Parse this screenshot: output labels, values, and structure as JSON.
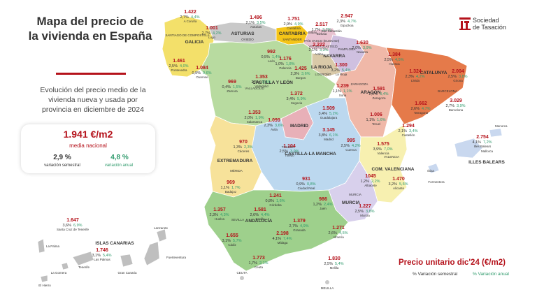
{
  "header": {
    "title_line1": "Mapa del precio de",
    "title_line2": "la vivienda en España",
    "subtitle_line1": "Evolución del precio medio de la",
    "subtitle_line2": "vivienda nueva y usada por",
    "subtitle_line3": "provincia en diciembre de 2024"
  },
  "brand": {
    "line1": "Sociedad",
    "line2": "de Tasación",
    "color": "#b5121b"
  },
  "national": {
    "price": "1.941 €/m2",
    "label": "media nacional",
    "semestral_value": "2,9 %",
    "semestral_label": "variación semestral",
    "anual_value": "4,8 %",
    "anual_label": "variación anual"
  },
  "legend": {
    "title": "Precio unitario dic'24 (€/m2)",
    "semestral": "% Variación semestral",
    "anual": "% Variación anual"
  },
  "colors": {
    "accent": "#b5121b",
    "anual": "#2e9a6b",
    "semestral": "#333333"
  },
  "regions": [
    {
      "name": "GALICIA",
      "color": "#f3e06a"
    },
    {
      "name": "ASTURIAS",
      "color": "#c9c9c9"
    },
    {
      "name": "CANTABRIA",
      "color": "#f5c518"
    },
    {
      "name": "PAÍS VASCO (EUSKADI)",
      "color": "#e8c2d0"
    },
    {
      "name": "NAVARRA",
      "color": "#cfc0e0"
    },
    {
      "name": "LA RIOJA",
      "color": "#d9c9a8"
    },
    {
      "name": "ARAGÓN",
      "color": "#f0b8a8"
    },
    {
      "name": "CATALUNYA",
      "color": "#e57a4a"
    },
    {
      "name": "CASTILLA Y LEÓN",
      "color": "#b8dba0"
    },
    {
      "name": "MADRID",
      "color": "#e8b0b8"
    },
    {
      "name": "CASTILLA-LA MANCHA",
      "color": "#bcd8ef"
    },
    {
      "name": "EXTREMADURA",
      "color": "#f7e29a"
    },
    {
      "name": "COM. VALENCIANA",
      "color": "#f7f0b0"
    },
    {
      "name": "MURCIA",
      "color": "#d8d0ec"
    },
    {
      "name": "ANDALUCÍA",
      "color": "#9ed08c"
    },
    {
      "name": "ILLES BALEARS",
      "color": "#c9d8ef"
    },
    {
      "name": "ISLAS CANARIAS",
      "color": "#bfbfbf"
    }
  ],
  "provinces": [
    {
      "name": "A Coruña",
      "price": "1.422",
      "vs": "2,7%",
      "va": "4,4%"
    },
    {
      "name": "Lugo",
      "price": "1.001",
      "vs": "2,7%",
      "va": "4,2%"
    },
    {
      "name": "Pontevedra",
      "price": "1.461",
      "vs": "2,5%",
      "va": "4,0%"
    },
    {
      "name": "Ourense",
      "price": "1.084",
      "vs": "0,9%",
      "va": "0,6%"
    },
    {
      "name": "Asturias",
      "price": "1.496",
      "vs": "2,1%",
      "va": "3,5%"
    },
    {
      "name": "Cantabria",
      "price": "1.751",
      "vs": "2,9%",
      "va": "4,9%"
    },
    {
      "name": "Bizkaia",
      "price": "2.517",
      "vs": "1,7%",
      "va": "3,2%"
    },
    {
      "name": "Gipuzkoa",
      "price": "2.947",
      "vs": "2,3%",
      "va": "4,7%"
    },
    {
      "name": "Araba",
      "price": "2.222",
      "vs": "2,1%",
      "va": "3,3%"
    },
    {
      "name": "Navarra",
      "price": "1.630",
      "vs": "2,0%",
      "va": "3,9%"
    },
    {
      "name": "La Rioja",
      "price": "1.300",
      "vs": "3,2%",
      "va": "5,4%"
    },
    {
      "name": "Huesca",
      "price": "1.384",
      "vs": "2,5%",
      "va": "4,5%"
    },
    {
      "name": "Zaragoza",
      "price": "1.591",
      "vs": "2,0%",
      "va": "3,4%"
    },
    {
      "name": "Teruel",
      "price": "1.006",
      "vs": "1,1%",
      "va": "1,6%"
    },
    {
      "name": "Lleida",
      "price": "1.324",
      "vs": "2,3%",
      "va": "4,2%"
    },
    {
      "name": "Girona",
      "price": "2.004",
      "vs": "2,5%",
      "va": "3,8%"
    },
    {
      "name": "Barcelona",
      "price": "3.029",
      "vs": "2,7%",
      "va": "3,9%"
    },
    {
      "name": "Tarragona",
      "price": "1.662",
      "vs": "2,6%",
      "va": "4,7%"
    },
    {
      "name": "León",
      "price": "992",
      "vs": "0,5%",
      "va": "1,4%"
    },
    {
      "name": "Palencia",
      "price": "1.176",
      "vs": "1,0%",
      "va": "1,8%"
    },
    {
      "name": "Burgos",
      "price": "1.425",
      "vs": "2,3%",
      "va": "3,6%"
    },
    {
      "name": "Zamora",
      "price": "969",
      "vs": "0,4%",
      "va": "1,5%"
    },
    {
      "name": "Valladolid",
      "price": "1.353",
      "vs": "2,0%",
      "va": "3,5%"
    },
    {
      "name": "Soria",
      "price": "1.239",
      "vs": "1,1%",
      "va": "1,1%"
    },
    {
      "name": "Segovia",
      "price": "1.372",
      "vs": "3,4%",
      "va": "5,9%"
    },
    {
      "name": "Salamanca",
      "price": "1.353",
      "vs": "2,0%",
      "va": "1,9%"
    },
    {
      "name": "Ávila",
      "price": "1.099",
      "vs": "2,3%",
      "va": "3,6%"
    },
    {
      "name": "Guadalajara",
      "price": "1.509",
      "vs": "3,4%",
      "va": "5,2%"
    },
    {
      "name": "Madrid",
      "price": "3.145",
      "vs": "3,8%",
      "va": "6,1%"
    },
    {
      "name": "Cuenca",
      "price": "995",
      "vs": "2,5%",
      "va": "4,2%"
    },
    {
      "name": "Toledo",
      "price": "1.104",
      "vs": "2,5%",
      "va": "3,9%"
    },
    {
      "name": "Ciudad Real",
      "price": "931",
      "vs": "0,9%",
      "va": "0,8%"
    },
    {
      "name": "Albacete",
      "price": "1045",
      "vs": "1,2%",
      "va": "2,2%"
    },
    {
      "name": "Cáceres",
      "price": "970",
      "vs": "1,3%",
      "va": "2,3%"
    },
    {
      "name": "Badajoz",
      "price": "969",
      "vs": "1,1%",
      "va": "1,7%"
    },
    {
      "name": "Castellón",
      "price": "1.294",
      "vs": "2,1%",
      "va": "3,4%"
    },
    {
      "name": "Valencia",
      "price": "1.575",
      "vs": "3,9%",
      "va": "7,0%"
    },
    {
      "name": "Alicante",
      "price": "1.470",
      "vs": "3,2%",
      "va": "5,6%"
    },
    {
      "name": "Murcia",
      "price": "1.227",
      "vs": "2,5%",
      "va": "3,8%"
    },
    {
      "name": "Huelva",
      "price": "1.357",
      "vs": "2,3%",
      "va": "4,3%"
    },
    {
      "name": "Sevilla",
      "price": "1.581",
      "vs": "2,6%",
      "va": "4,4%"
    },
    {
      "name": "Córdoba",
      "price": "1.241",
      "vs": "0,8%",
      "va": "1,6%"
    },
    {
      "name": "Jaén",
      "price": "986",
      "vs": "1,2%",
      "va": "2,4%"
    },
    {
      "name": "Granada",
      "price": "1.379",
      "vs": "2,7%",
      "va": "4,9%"
    },
    {
      "name": "Almería",
      "price": "1.271",
      "vs": "2,6%",
      "va": "4,5%"
    },
    {
      "name": "Málaga",
      "price": "2.198",
      "vs": "4,1%",
      "va": "7,4%"
    },
    {
      "name": "Cádiz",
      "price": "1.655",
      "vs": "3,1%",
      "va": "5,7%"
    },
    {
      "name": "Illes Balears",
      "price": "2.754",
      "vs": "4,1%",
      "va": "7,2%"
    },
    {
      "name": "Santa Cruz de Tenerife",
      "price": "1.647",
      "vs": "3,6%",
      "va": "6,9%"
    },
    {
      "name": "Las Palmas",
      "price": "1.746",
      "vs": "3,1%",
      "va": "5,4%"
    },
    {
      "name": "Ceuta",
      "price": "1.773",
      "vs": "1,7%",
      "va": "2,1%"
    },
    {
      "name": "Melilla",
      "price": "1.830",
      "vs": "2,5%",
      "va": "5,4%"
    }
  ],
  "labels": {
    "santiago": "SANTIAGO DE COMPOSTELA",
    "oviedo": "OVIEDO",
    "santander": "SANTANDER",
    "bilbao": "Bilbao",
    "sansebastian": "San Sebastián",
    "vitoria": "VITORIA (GASTEIZ)",
    "pamplona": "PAMPLONA",
    "logrono": "LOGROÑO",
    "zaragoza": "ZARAGOZA",
    "barcelona": "BARCELONA",
    "valladolid": "VALLADOLID",
    "toledo": "TOLEDO",
    "merida": "MÉRIDA",
    "valencia": "VALENCIA",
    "murcia_c": "MURCIA",
    "sevilla_c": "SEVILLA",
    "ceuta": "CEUTA",
    "melilla": "MELILLA",
    "mallorca": "Mallorca",
    "menorca": "Menorca",
    "ibiza": "Ibiza",
    "formentera": "Formentera",
    "lanzarote": "Lanzarote",
    "fuerteventura": "Fuerteventura",
    "grancanaria": "Gran Canaria",
    "tenerife": "Tenerife",
    "lagomera": "La Gomera",
    "lapalma": "La Palma",
    "elhierro": "El Hierro"
  }
}
